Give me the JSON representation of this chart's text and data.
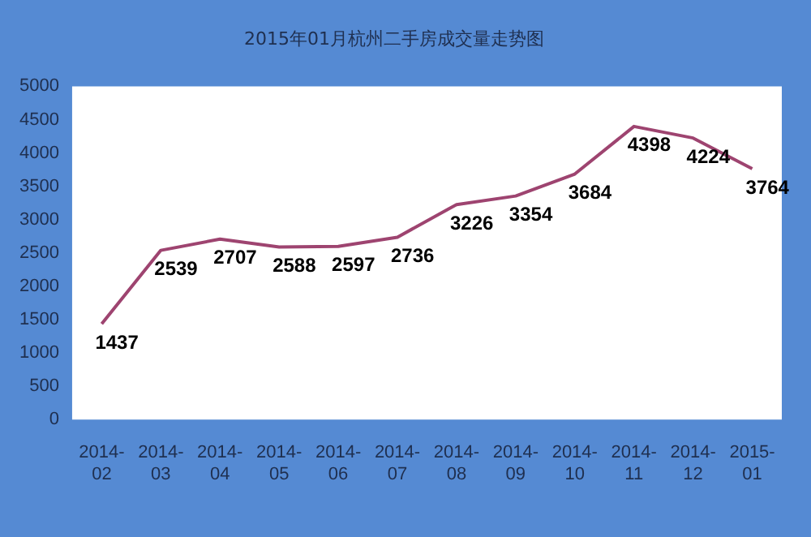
{
  "chart_data": {
    "type": "line",
    "title": "2015年01月杭州二手房成交量走势图",
    "categories": [
      "2014-02",
      "2014-03",
      "2014-04",
      "2014-05",
      "2014-06",
      "2014-07",
      "2014-08",
      "2014-09",
      "2014-10",
      "2014-11",
      "2014-12",
      "2015-01"
    ],
    "series": [
      {
        "color": "#9e4470",
        "values": [
          1437,
          2539,
          2707,
          2588,
          2597,
          2736,
          3226,
          3354,
          3684,
          4398,
          4224,
          3764
        ]
      }
    ],
    "ylim": [
      0,
      5000
    ],
    "yticks": [
      0,
      500,
      1000,
      1500,
      2000,
      2500,
      3000,
      3500,
      4000,
      4500,
      5000
    ],
    "grid": false,
    "legend": false,
    "marker": "none",
    "data_labels": true
  }
}
